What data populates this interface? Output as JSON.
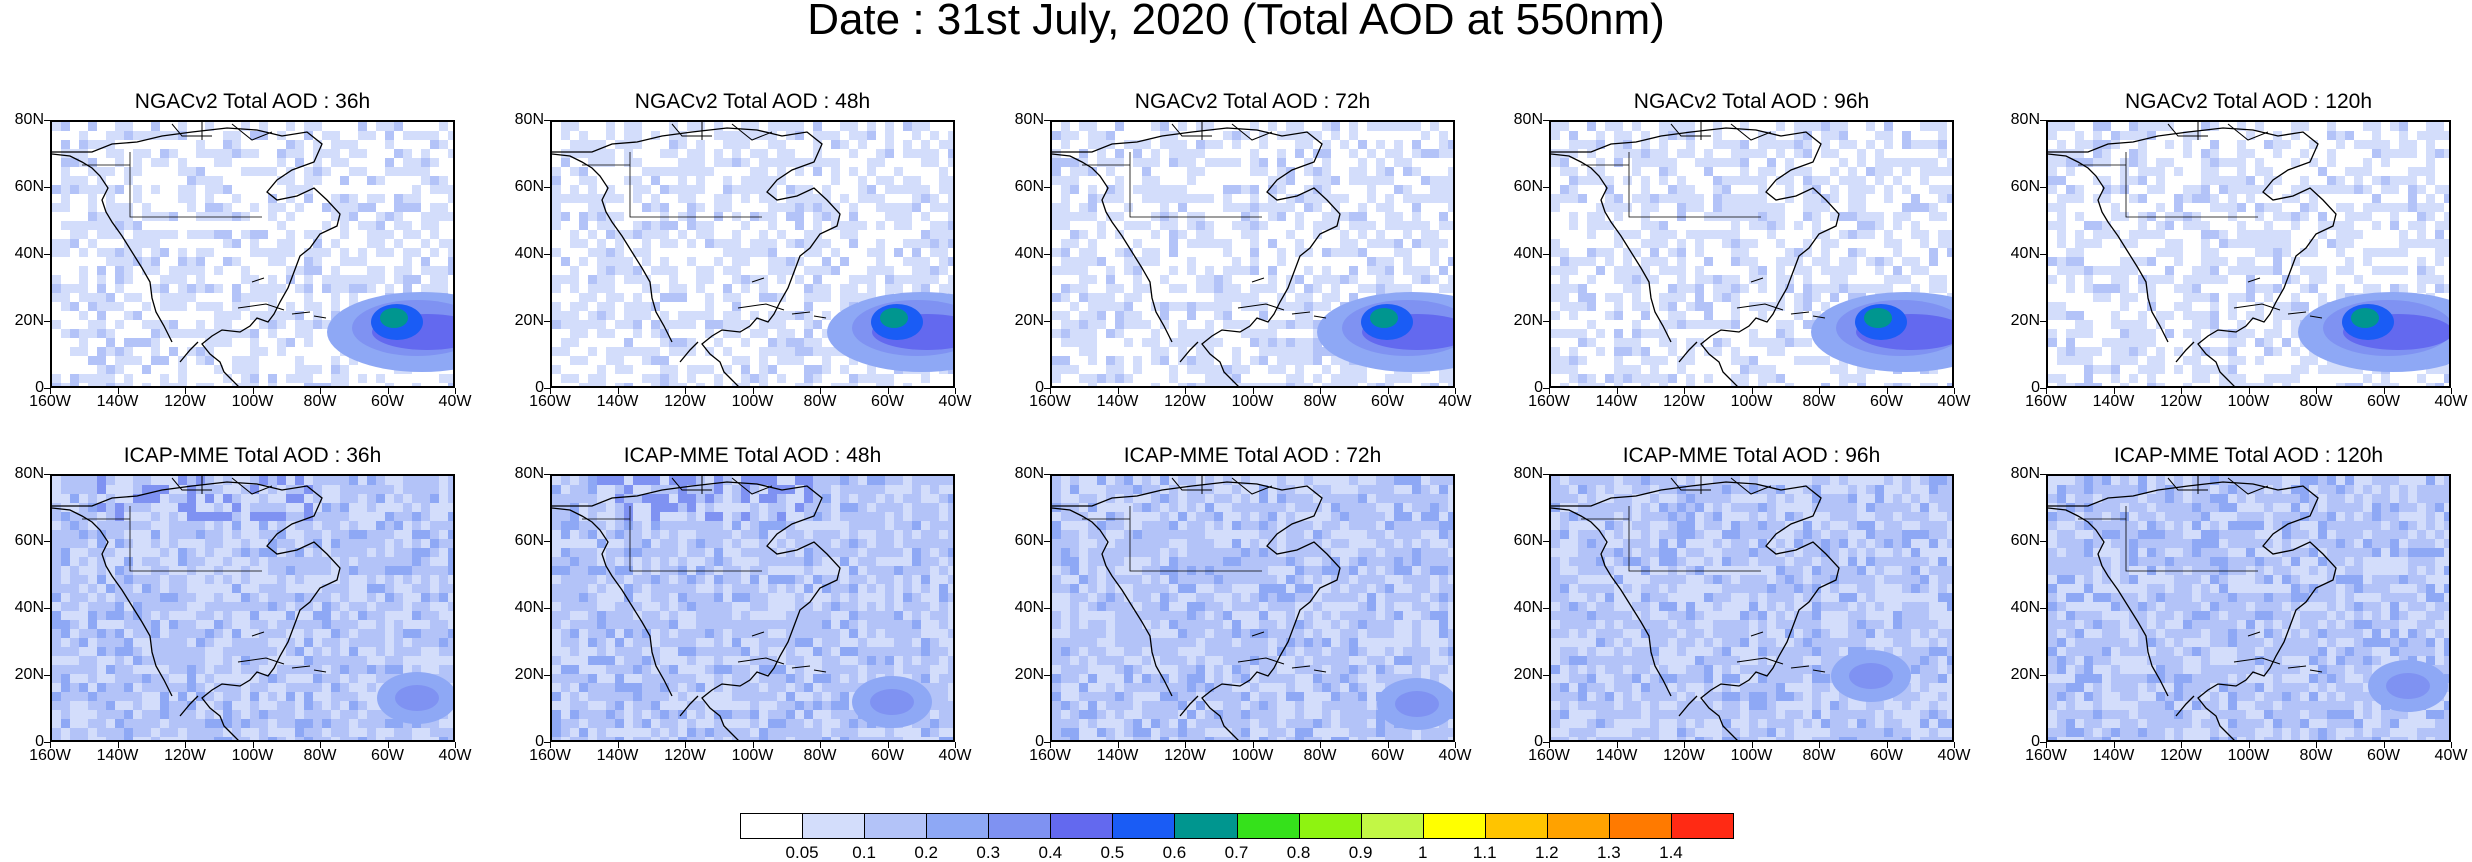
{
  "title": "Date : 31st July, 2020 (Total AOD at 550nm)",
  "y_ticks": [
    "80N",
    "60N",
    "40N",
    "20N",
    "0"
  ],
  "x_ticks": [
    "160W",
    "140W",
    "120W",
    "100W",
    "80W",
    "60W",
    "40W"
  ],
  "panels": [
    {
      "title": "NGACv2 Total AOD : 36h",
      "model": "NGACv2",
      "lead_hours": 36
    },
    {
      "title": "NGACv2 Total AOD : 48h",
      "model": "NGACv2",
      "lead_hours": 48
    },
    {
      "title": "NGACv2 Total AOD : 72h",
      "model": "NGACv2",
      "lead_hours": 72
    },
    {
      "title": "NGACv2 Total AOD : 96h",
      "model": "NGACv2",
      "lead_hours": 96
    },
    {
      "title": "NGACv2 Total AOD : 120h",
      "model": "NGACv2",
      "lead_hours": 120
    },
    {
      "title": "ICAP-MME Total AOD : 36h",
      "model": "ICAP-MME",
      "lead_hours": 36
    },
    {
      "title": "ICAP-MME Total AOD : 48h",
      "model": "ICAP-MME",
      "lead_hours": 48
    },
    {
      "title": "ICAP-MME Total AOD : 72h",
      "model": "ICAP-MME",
      "lead_hours": 72
    },
    {
      "title": "ICAP-MME Total AOD : 96h",
      "model": "ICAP-MME",
      "lead_hours": 96
    },
    {
      "title": "ICAP-MME Total AOD : 120h",
      "model": "ICAP-MME",
      "lead_hours": 120
    }
  ],
  "colorbar": {
    "labels": [
      "0.05",
      "0.1",
      "0.2",
      "0.3",
      "0.4",
      "0.5",
      "0.6",
      "0.7",
      "0.8",
      "0.9",
      "1",
      "1.1",
      "1.2",
      "1.3",
      "1.4"
    ],
    "colors": [
      "#ffffff",
      "#d3ddfb",
      "#b3c3f8",
      "#8ea8f5",
      "#7f92f2",
      "#6369ef",
      "#1a5cf5",
      "#00968f",
      "#35e11b",
      "#8ef311",
      "#c2f745",
      "#ffff00",
      "#ffc400",
      "#ffa200",
      "#ff7a00",
      "#ff2a14"
    ]
  },
  "map_colors": {
    "land": "#ffffff",
    "coast": "#000000"
  }
}
